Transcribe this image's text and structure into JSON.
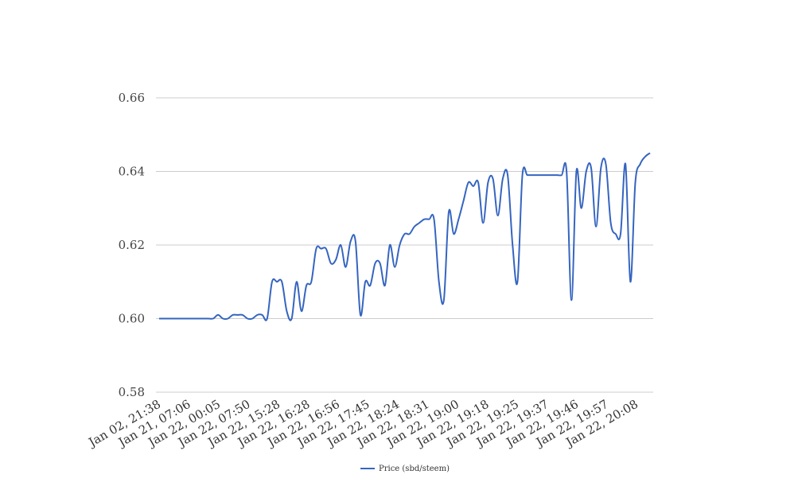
{
  "chart_data": {
    "type": "line",
    "title": "",
    "xlabel": "",
    "ylabel": "",
    "ylim": [
      0.58,
      0.66
    ],
    "yticks": [
      "0.58",
      "0.60",
      "0.62",
      "0.64",
      "0.66"
    ],
    "grid": true,
    "legend_position": "bottom",
    "line_color": "#3565c0",
    "x_tick_labels": [
      "Jan 02, 21:38",
      "Jan 21, 07:06",
      "Jan 22, 00:05",
      "Jan 22, 07:50",
      "Jan 22, 15:28",
      "Jan 22, 16:28",
      "Jan 22, 16:56",
      "Jan 22, 17:45",
      "Jan 22, 18:24",
      "Jan 22, 18:31",
      "Jan 22, 19:00",
      "Jan 22, 19:18",
      "Jan 22, 19:25",
      "Jan 22, 19:37",
      "Jan 22, 19:46",
      "Jan 22, 19:57",
      "Jan 22, 20:08"
    ],
    "series": [
      {
        "name": "Price (sbd/steem)",
        "values": [
          0.6,
          0.6,
          0.6,
          0.6,
          0.6,
          0.6,
          0.6,
          0.6,
          0.6,
          0.6,
          0.6,
          0.6,
          0.601,
          0.6,
          0.6,
          0.601,
          0.601,
          0.601,
          0.6,
          0.6,
          0.601,
          0.601,
          0.6,
          0.61,
          0.61,
          0.61,
          0.602,
          0.6,
          0.61,
          0.602,
          0.609,
          0.61,
          0.619,
          0.619,
          0.619,
          0.615,
          0.616,
          0.62,
          0.614,
          0.621,
          0.621,
          0.601,
          0.61,
          0.609,
          0.615,
          0.615,
          0.609,
          0.62,
          0.614,
          0.62,
          0.623,
          0.623,
          0.625,
          0.626,
          0.627,
          0.627,
          0.627,
          0.61,
          0.605,
          0.629,
          0.623,
          0.627,
          0.632,
          0.637,
          0.636,
          0.637,
          0.626,
          0.637,
          0.638,
          0.628,
          0.638,
          0.639,
          0.62,
          0.61,
          0.639,
          0.639,
          0.639,
          0.639,
          0.639,
          0.639,
          0.639,
          0.639,
          0.639,
          0.64,
          0.605,
          0.64,
          0.63,
          0.64,
          0.641,
          0.625,
          0.641,
          0.642,
          0.626,
          0.623,
          0.623,
          0.642,
          0.61,
          0.637,
          0.642,
          0.644,
          0.645
        ]
      }
    ]
  }
}
